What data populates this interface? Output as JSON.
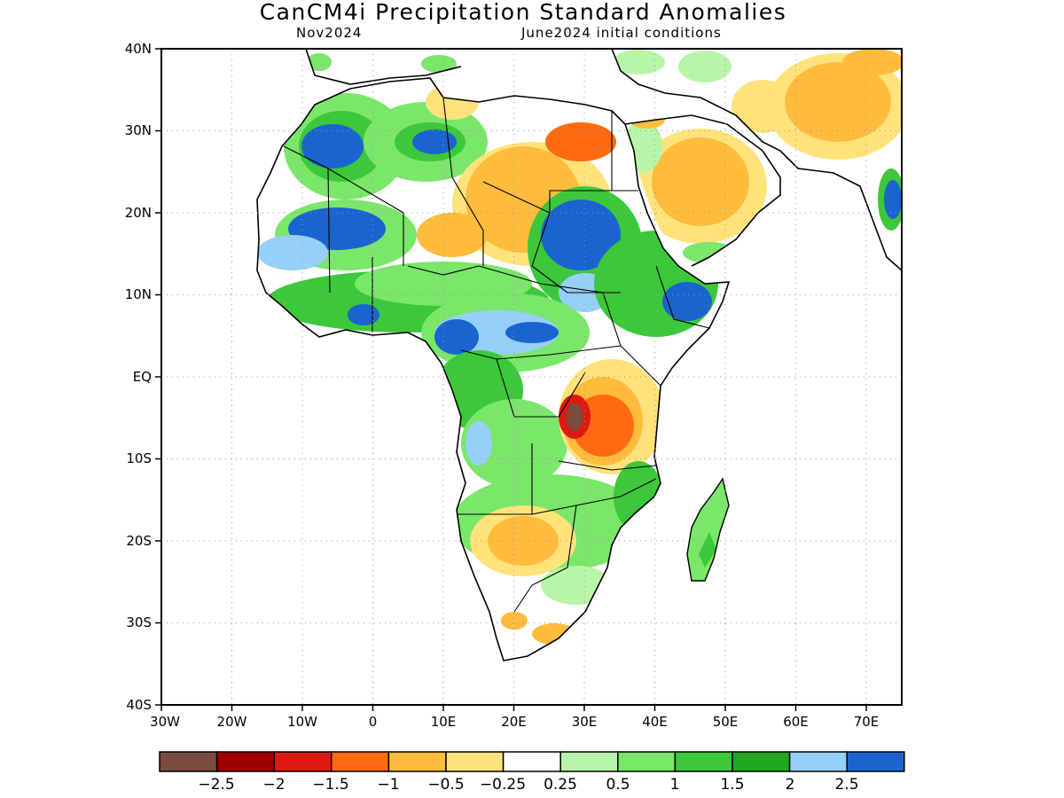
{
  "title": "CanCM4i Precipitation Standard Anomalies",
  "subtitle_left": "Nov2024",
  "subtitle_right": "June2024 initial conditions",
  "axes": {
    "y_ticks": [
      "40N",
      "30N",
      "20N",
      "10N",
      "EQ",
      "10S",
      "20S",
      "30S",
      "40S"
    ],
    "x_ticks": [
      "30W",
      "20W",
      "10W",
      "0",
      "10E",
      "20E",
      "30E",
      "40E",
      "50E",
      "60E",
      "70E"
    ],
    "lon_range": [
      -30,
      75
    ],
    "lat_range": [
      -40,
      40
    ],
    "grid": "dotted"
  },
  "colorbar": {
    "colors": [
      "#7a4b3f",
      "#a00000",
      "#dc1a10",
      "#ff6a10",
      "#ffbb3c",
      "#ffe37a",
      "#ffffff",
      "#b8f5a8",
      "#7ae66a",
      "#3cc83a",
      "#20a820",
      "#96d0f8",
      "#1a64d0"
    ],
    "labels": [
      "−2.5",
      "−2",
      "−1.5",
      "−1",
      "−0.5",
      "−0.25",
      "0.25",
      "0.5",
      "1",
      "1.5",
      "2",
      "2.5"
    ]
  },
  "map": {
    "region": "Africa",
    "variable": "precipitation standard anomaly"
  }
}
